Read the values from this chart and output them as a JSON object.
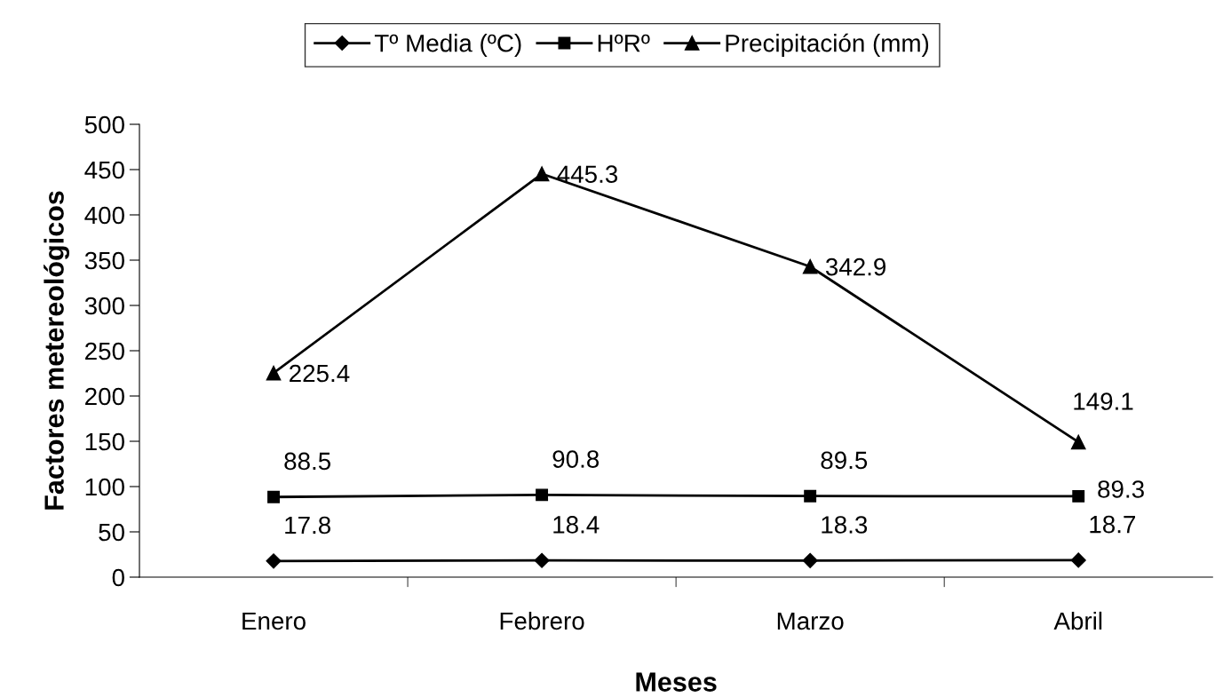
{
  "chart_data": {
    "type": "line",
    "xlabel": "Meses",
    "ylabel": "Factores metereológicos",
    "categories": [
      "Enero",
      "Febrero",
      "Marzo",
      "Abril"
    ],
    "series": [
      {
        "name": "Tº Media (ºC)",
        "color": "#000000",
        "marker": "diamond",
        "values": [
          17.8,
          18.4,
          18.3,
          18.7
        ]
      },
      {
        "name": "HºRº",
        "color": "#000000",
        "marker": "square",
        "values": [
          88.5,
          90.8,
          89.5,
          89.3
        ]
      },
      {
        "name": "Precipitación (mm)",
        "color": "#000000",
        "marker": "triangle",
        "values": [
          225.4,
          445.3,
          342.9,
          149.1
        ]
      }
    ],
    "ylim": [
      0,
      500
    ],
    "yticks": [
      0,
      50,
      100,
      150,
      200,
      250,
      300,
      350,
      400,
      450,
      500
    ],
    "grid": false,
    "legend": "top",
    "data_labels": true,
    "line_style": "solid"
  }
}
